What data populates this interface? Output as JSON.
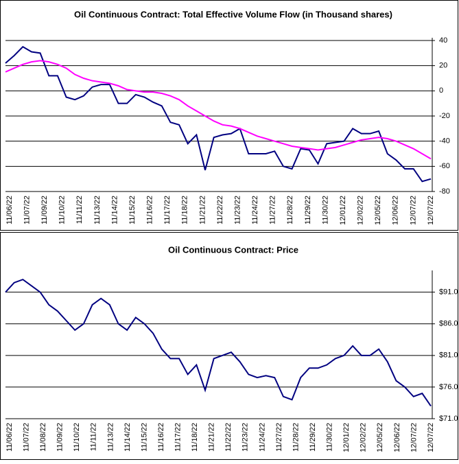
{
  "chart_data": [
    {
      "type": "line",
      "title": "Oil Continuous Contract: Total Effective Volume Flow (in Thousand shares)",
      "xtick_labels": [
        "11/06/22",
        "11/07/22",
        "11/09/22",
        "11/10/22",
        "11/11/22",
        "11/13/22",
        "11/14/22",
        "11/15/22",
        "11/16/22",
        "11/17/22",
        "11/18/22",
        "11/21/22",
        "11/22/22",
        "11/23/22",
        "11/24/22",
        "11/27/22",
        "11/28/22",
        "11/29/22",
        "11/30/22",
        "12/01/22",
        "12/02/22",
        "12/05/22",
        "12/06/22",
        "12/07/22",
        "12/07/22"
      ],
      "series": [
        {
          "color": "#000080",
          "values": [
            22,
            28,
            35,
            31,
            30,
            12,
            12,
            -5,
            -7,
            -4,
            3,
            5,
            5,
            -10,
            -10,
            -3,
            -5,
            -9,
            -12,
            -25,
            -27,
            -42,
            -35,
            -63,
            -37,
            -35,
            -34,
            -30,
            -50,
            -50,
            -50,
            -48,
            -60,
            -62,
            -46,
            -47,
            -58,
            -42,
            -41,
            -40,
            -30,
            -34,
            -34,
            -32,
            -50,
            -55,
            -62,
            -62,
            -72,
            -70
          ]
        },
        {
          "color": "#ff00ff",
          "values": [
            15,
            18,
            21,
            23,
            24,
            23,
            21,
            18,
            13,
            10,
            8,
            7,
            6,
            4,
            1,
            0,
            -1,
            -1,
            -2,
            -4,
            -7,
            -12,
            -16,
            -20,
            -24,
            -27,
            -28,
            -30,
            -33,
            -36,
            -38,
            -40,
            -42,
            -44,
            -45,
            -46,
            -47,
            -46,
            -45,
            -43,
            -41,
            -39,
            -38,
            -37,
            -38,
            -40,
            -43,
            -46,
            -50,
            -54
          ]
        }
      ],
      "ylim": [
        -80,
        40
      ],
      "yticks": [
        40,
        20,
        0,
        -20,
        -40,
        -60,
        -80
      ],
      "grid": true
    },
    {
      "type": "line",
      "title": "Oil Continuous Contract: Price",
      "xtick_labels": [
        "11/06/22",
        "11/07/22",
        "11/08/22",
        "11/09/22",
        "11/10/22",
        "11/11/22",
        "11/13/22",
        "11/14/22",
        "11/15/22",
        "11/16/22",
        "11/17/22",
        "11/18/22",
        "11/21/22",
        "11/22/22",
        "11/23/22",
        "11/24/22",
        "11/27/22",
        "11/28/22",
        "11/29/22",
        "11/30/22",
        "12/01/22",
        "12/02/22",
        "12/05/22",
        "12/06/22",
        "12/07/22",
        "12/07/22"
      ],
      "series": [
        {
          "color": "#000080",
          "values": [
            91,
            92.5,
            93,
            92,
            91,
            89,
            88,
            86.5,
            85,
            86,
            89,
            90,
            89,
            86,
            85,
            87,
            86,
            84.5,
            82,
            80.5,
            80.5,
            78,
            79.5,
            75.5,
            80.5,
            81,
            81.5,
            80,
            78,
            77.5,
            77.8,
            77.5,
            74.5,
            74,
            77.5,
            79,
            79,
            79.5,
            80.5,
            81,
            82.5,
            81,
            81,
            82,
            80,
            77,
            76,
            74.5,
            75,
            73
          ]
        }
      ],
      "ylim": [
        71,
        94
      ],
      "yticks": [
        {
          "value": 91,
          "label": "$91.0"
        },
        {
          "value": 86,
          "label": "$86.0"
        },
        {
          "value": 81,
          "label": "$81.0"
        },
        {
          "value": 76,
          "label": "$76.0"
        },
        {
          "value": 71,
          "label": "$71.0"
        }
      ],
      "grid": true
    }
  ]
}
